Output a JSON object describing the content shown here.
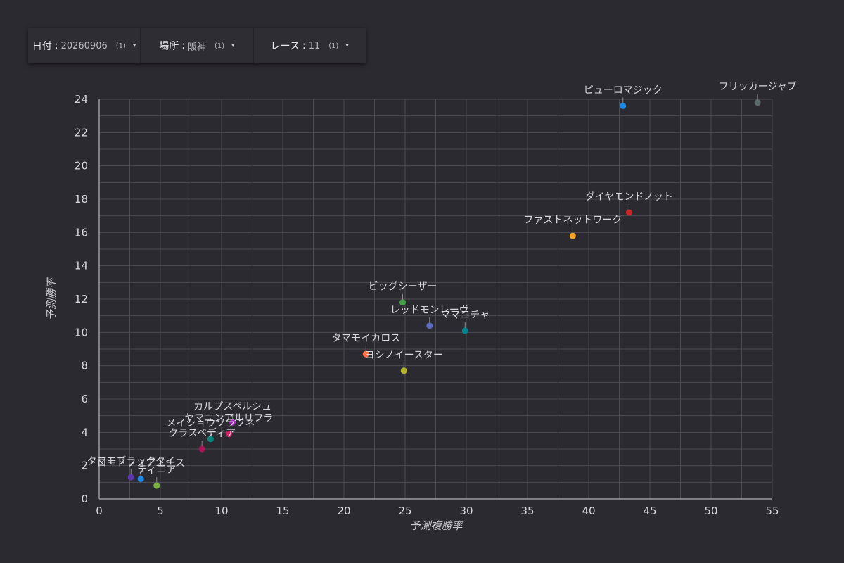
{
  "filters": [
    {
      "label": "日付",
      "value": "20260906",
      "count": "(1)",
      "caret": "▾"
    },
    {
      "label": "場所",
      "value": "阪神",
      "count": "(1)",
      "caret": "▾"
    },
    {
      "label": "レース",
      "value": "11",
      "count": "(1)",
      "caret": "▾"
    }
  ],
  "colors": {
    "background": "#2b2a30",
    "grid": "#4c4b52",
    "axis": "#9c9ba2",
    "text": "#d8d8dc"
  },
  "chart_data": {
    "type": "scatter",
    "xlabel": "予測複勝率",
    "ylabel": "予測勝率",
    "xlim": [
      0,
      55
    ],
    "ylim": [
      0,
      24
    ],
    "xticks": [
      0,
      5,
      10,
      15,
      20,
      25,
      30,
      35,
      40,
      45,
      50,
      55
    ],
    "yticks": [
      0,
      2,
      4,
      6,
      8,
      10,
      12,
      14,
      16,
      18,
      20,
      22,
      24
    ],
    "grid": true,
    "points": [
      {
        "name": "フリッカージャブ",
        "x": 53.8,
        "y": 23.8,
        "color": "#5f6b6e"
      },
      {
        "name": "ピューロマジック",
        "x": 42.8,
        "y": 23.6,
        "color": "#1e88e5"
      },
      {
        "name": "ダイヤモンドノット",
        "x": 43.3,
        "y": 17.2,
        "color": "#c62828"
      },
      {
        "name": "ファストネットワーク",
        "x": 38.7,
        "y": 15.8,
        "color": "#f9a825"
      },
      {
        "name": "ビッグシーザー",
        "x": 24.8,
        "y": 11.8,
        "color": "#43a047"
      },
      {
        "name": "レッドモンレーヴ",
        "x": 27.0,
        "y": 10.4,
        "color": "#5c6bc0"
      },
      {
        "name": "ママコチャ",
        "x": 29.9,
        "y": 10.1,
        "color": "#00838f"
      },
      {
        "name": "タマモイカロス",
        "x": 21.8,
        "y": 8.7,
        "color": "#ff7043"
      },
      {
        "name": "ヨシノイースター",
        "x": 24.9,
        "y": 7.7,
        "color": "#afb42b"
      },
      {
        "name": "カルプスペルシュ",
        "x": 10.9,
        "y": 4.6,
        "color": "#9c27b0"
      },
      {
        "name": "ヤマニンアルリフラ",
        "x": 10.6,
        "y": 3.9,
        "color": "#d81b60"
      },
      {
        "name": "メイショウソラフネ",
        "x": 9.1,
        "y": 3.6,
        "color": "#00897b"
      },
      {
        "name": "クラスペディア",
        "x": 8.4,
        "y": 3.0,
        "color": "#ad1457"
      },
      {
        "name": "タマモブラックタイ",
        "x": 2.6,
        "y": 1.3,
        "color": "#5e35b1"
      },
      {
        "name": "ロードフォアエース",
        "x": 3.4,
        "y": 1.2,
        "color": "#1e88e5"
      },
      {
        "name": "ティニア",
        "x": 4.7,
        "y": 0.8,
        "color": "#7cb342"
      }
    ]
  }
}
